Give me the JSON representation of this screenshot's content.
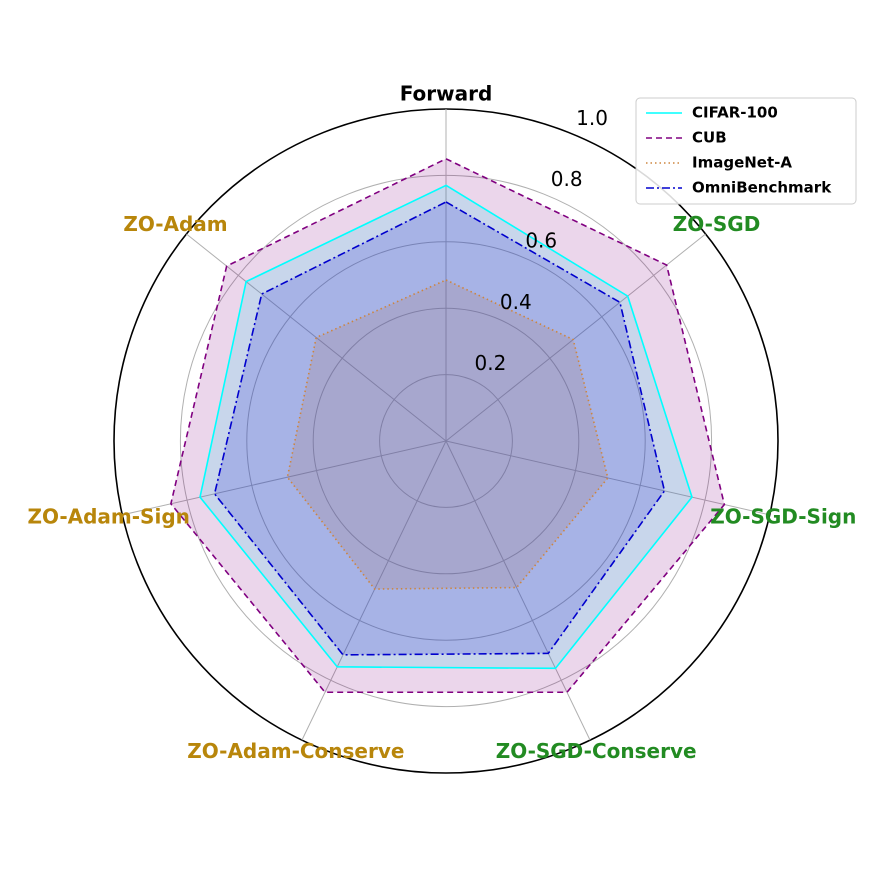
{
  "chart_data": {
    "type": "radar",
    "categories": [
      "Forward",
      "ZO-SGD",
      "ZO-SGD-Sign",
      "ZO-SGD-Conserve",
      "ZO-Adam-Conserve",
      "ZO-Adam-Sign",
      "ZO-Adam"
    ],
    "category_colors": [
      "#000000",
      "#228b22",
      "#228b22",
      "#228b22",
      "#b8860b",
      "#b8860b",
      "#b8860b"
    ],
    "series": [
      {
        "name": "CIFAR-100",
        "color": "#00ffff",
        "dash": "solid",
        "values": [
          0.77,
          0.7,
          0.76,
          0.76,
          0.755,
          0.76,
          0.77
        ]
      },
      {
        "name": "CUB",
        "color": "#800080",
        "dash": "dashed",
        "values": [
          0.85,
          0.85,
          0.86,
          0.84,
          0.84,
          0.85,
          0.845
        ]
      },
      {
        "name": "ImageNet-A",
        "color": "#cd853f",
        "dash": "dotted",
        "values": [
          0.485,
          0.49,
          0.5,
          0.49,
          0.495,
          0.49,
          0.5
        ]
      },
      {
        "name": "OmniBenchmark",
        "color": "#0000cd",
        "dash": "dashdot",
        "values": [
          0.72,
          0.67,
          0.675,
          0.71,
          0.715,
          0.715,
          0.71
        ]
      }
    ],
    "ylim": [
      0,
      1
    ],
    "yticks": [
      0.2,
      0.4,
      0.6,
      0.8,
      {
        "value": 1,
        "label": "1.0"
      }
    ],
    "grid": true,
    "legend": "upper right"
  }
}
